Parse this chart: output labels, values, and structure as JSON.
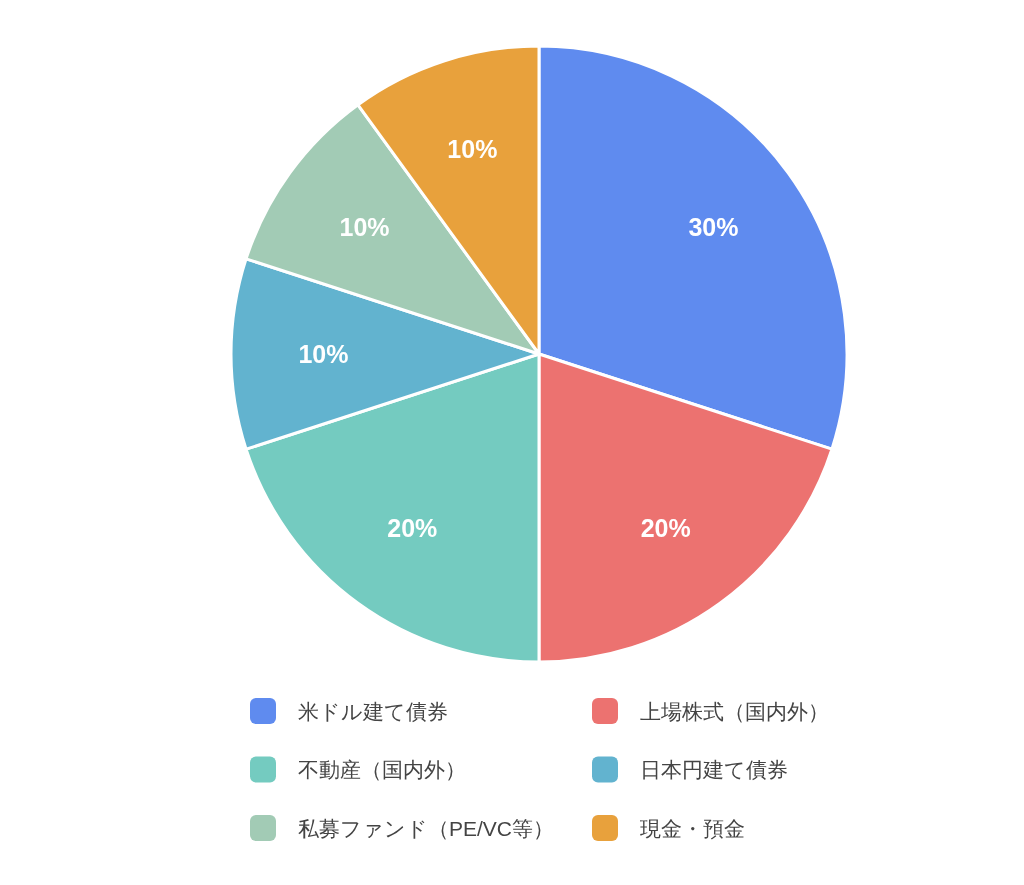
{
  "chart_data": {
    "type": "pie",
    "categories": [
      "米ドル建て債券",
      "上場株式（国内外）",
      "不動産（国内外）",
      "日本円建て債券",
      "私募ファンド（PE/VC等）",
      "現金・預金"
    ],
    "values": [
      30,
      20,
      20,
      10,
      10,
      10
    ],
    "colors": [
      "#5f8bef",
      "#ec7270",
      "#74cbc0",
      "#62b3cf",
      "#a2cbb5",
      "#e8a13c"
    ],
    "value_labels": [
      "30%",
      "20%",
      "20%",
      "10%",
      "10%",
      "10%"
    ],
    "legend": "bottom"
  }
}
